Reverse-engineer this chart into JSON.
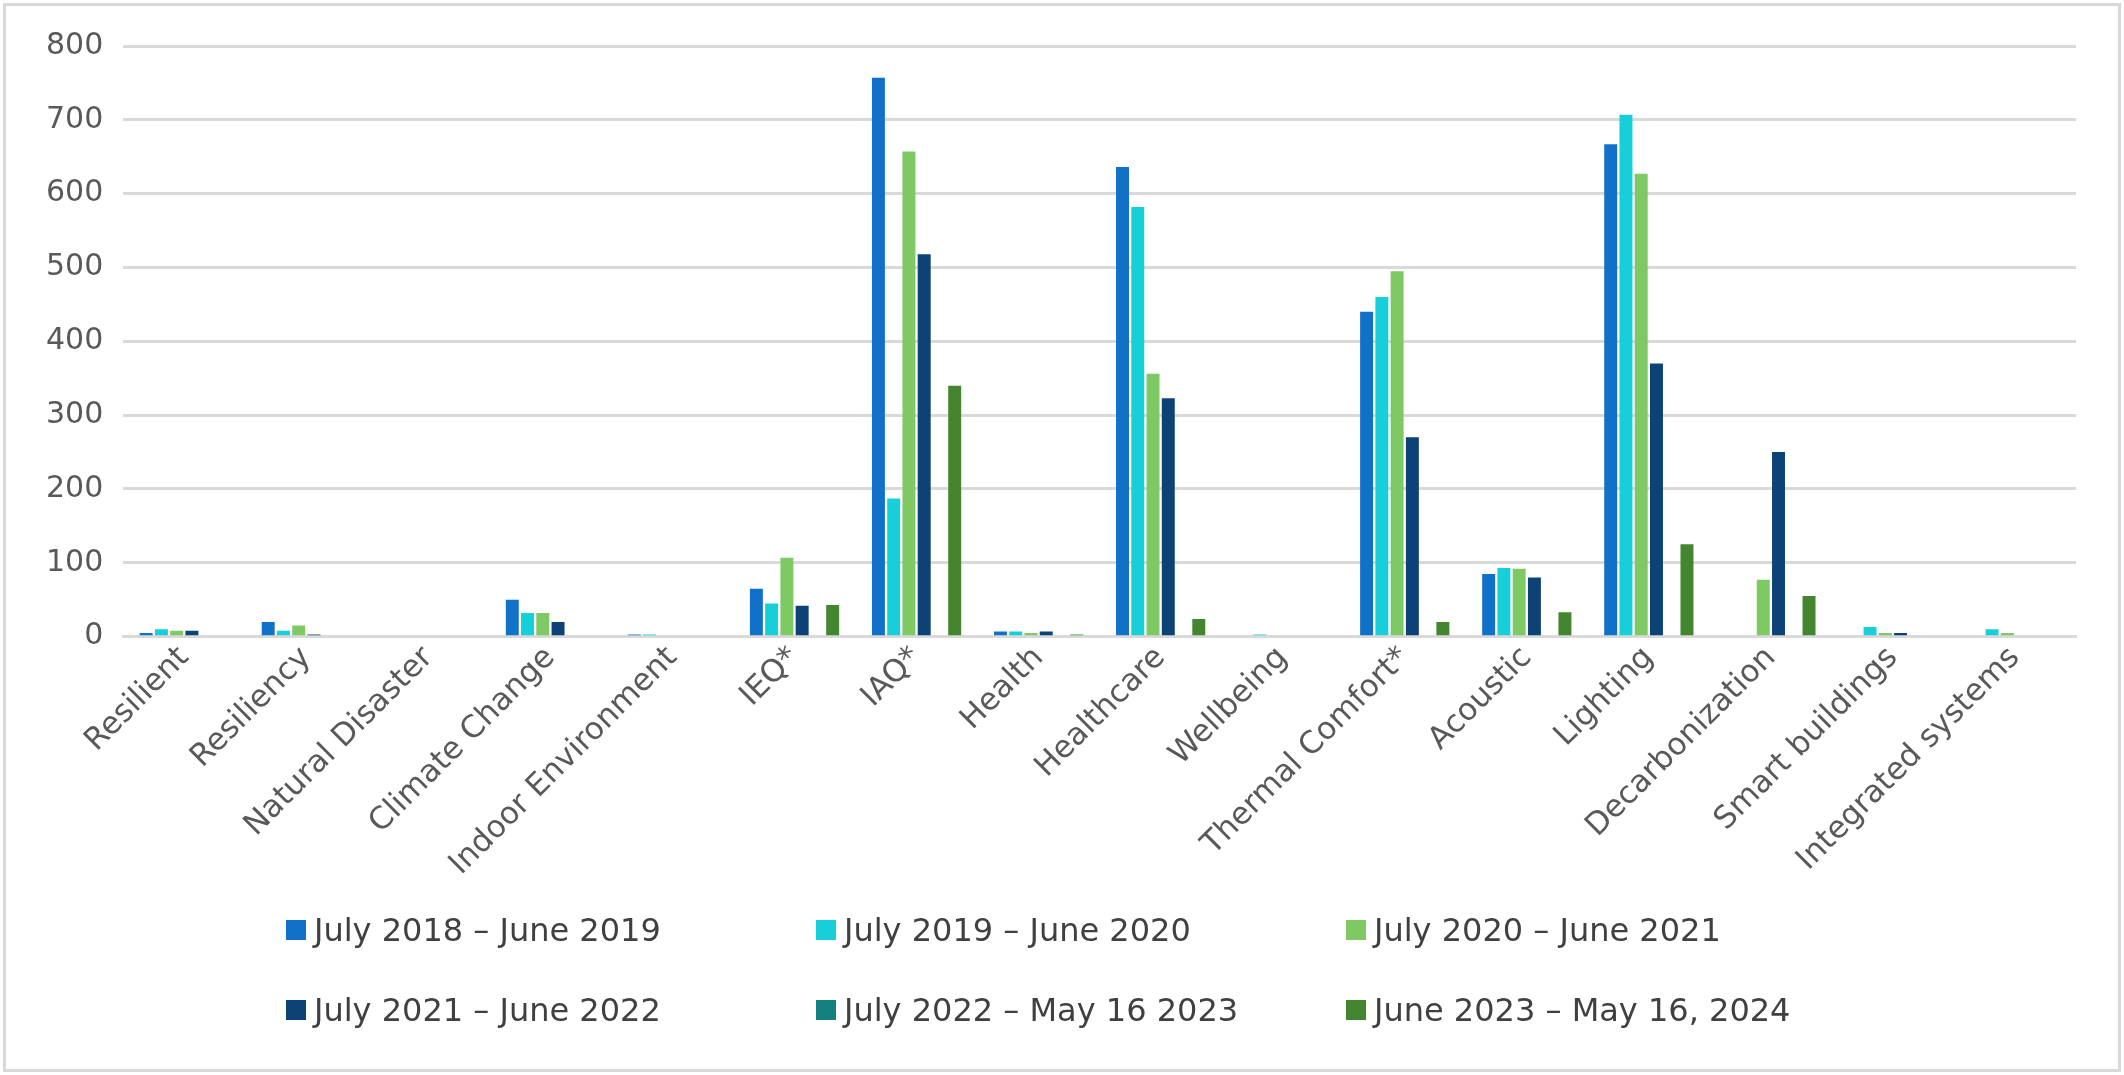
{
  "chart_data": {
    "type": "bar",
    "categories": [
      "Resilient",
      "Resiliency",
      "Natural Disaster",
      "Climate Change",
      "Indoor Environment",
      "IEQ*",
      "IAQ*",
      "Health",
      "Healthcare",
      "Wellbeing",
      "Thermal Comfort*",
      "Acoustic",
      "Lighting",
      "Decarbonization",
      "Smart buildings",
      "Integrated systems"
    ],
    "series": [
      {
        "name": "July 2018 – June 2019",
        "color": "#1170c8",
        "values": [
          5,
          20,
          0,
          50,
          3,
          65,
          757,
          7,
          636,
          0,
          440,
          85,
          667,
          0,
          0,
          0
        ]
      },
      {
        "name": "July 2019 – June 2020",
        "color": "#17cfd8",
        "values": [
          10,
          8,
          0,
          32,
          3,
          45,
          187,
          7,
          582,
          3,
          460,
          93,
          707,
          0,
          13,
          10
        ]
      },
      {
        "name": "July 2020 – June 2021",
        "color": "#7fc964",
        "values": [
          8,
          15,
          0,
          32,
          0,
          107,
          657,
          5,
          356,
          0,
          495,
          92,
          627,
          77,
          5,
          5
        ]
      },
      {
        "name": "July 2021 – June 2022",
        "color": "#0c4276",
        "values": [
          8,
          3,
          0,
          20,
          0,
          42,
          518,
          7,
          323,
          0,
          270,
          80,
          370,
          250,
          5,
          0
        ]
      },
      {
        "name": "July 2022 –  May 16 2023",
        "color": "#14807d",
        "values": [
          0,
          0,
          0,
          0,
          0,
          0,
          0,
          0,
          0,
          0,
          0,
          0,
          0,
          0,
          0,
          0
        ]
      },
      {
        "name": "June 2023 –  May 16, 2024",
        "color": "#43862f",
        "values": [
          0,
          0,
          0,
          0,
          0,
          43,
          340,
          3,
          24,
          0,
          20,
          33,
          125,
          55,
          0,
          0
        ]
      }
    ],
    "ylim": [
      0,
      800
    ],
    "yticks": [
      0,
      100,
      200,
      300,
      400,
      500,
      600,
      700,
      800
    ],
    "grid": "y",
    "legend": "bottom"
  }
}
